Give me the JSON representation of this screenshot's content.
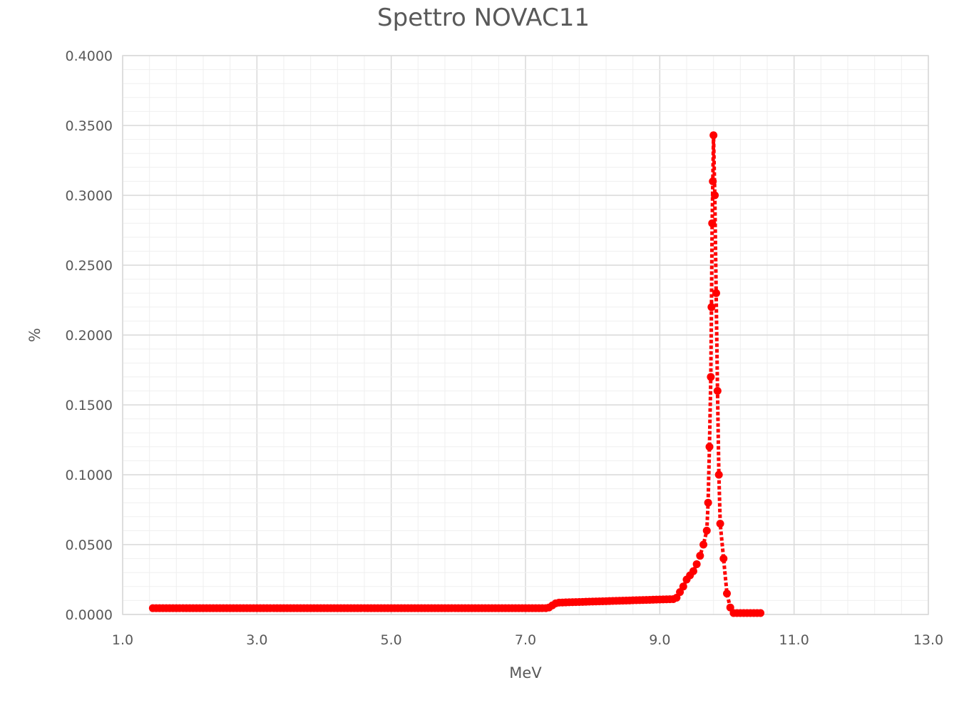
{
  "chart_data": {
    "type": "scatter",
    "title": "Spettro NOVAC11",
    "xlabel": "MeV",
    "ylabel": "%",
    "xlim": [
      1.0,
      13.0
    ],
    "ylim": [
      0.0,
      0.4
    ],
    "x_ticks": [
      "1.0",
      "3.0",
      "5.0",
      "7.0",
      "9.0",
      "11.0",
      "13.0"
    ],
    "y_ticks": [
      "0.0000",
      "0.0500",
      "0.1000",
      "0.1500",
      "0.2000",
      "0.2500",
      "0.3000",
      "0.3500",
      "0.4000"
    ],
    "grid": true,
    "series": [
      {
        "color": "#ff0000",
        "line_style": "dotted",
        "segments": [
          {
            "from": [
              1.45,
              0.0045
            ],
            "to": [
              7.3,
              0.0045
            ],
            "step": 0.05
          },
          {
            "from": [
              7.35,
              0.005
            ],
            "to": [
              7.45,
              0.008
            ],
            "step": 0.05
          },
          {
            "from": [
              7.5,
              0.0085
            ],
            "to": [
              9.2,
              0.011
            ],
            "step": 0.05
          }
        ],
        "points": [
          [
            9.25,
            0.012
          ],
          [
            9.3,
            0.016
          ],
          [
            9.35,
            0.02
          ],
          [
            9.4,
            0.025
          ],
          [
            9.45,
            0.028
          ],
          [
            9.5,
            0.031
          ],
          [
            9.55,
            0.036
          ],
          [
            9.6,
            0.042
          ],
          [
            9.65,
            0.05
          ],
          [
            9.7,
            0.06
          ],
          [
            9.72,
            0.08
          ],
          [
            9.74,
            0.12
          ],
          [
            9.76,
            0.17
          ],
          [
            9.77,
            0.22
          ],
          [
            9.78,
            0.28
          ],
          [
            9.79,
            0.31
          ],
          [
            9.8,
            0.343
          ],
          [
            9.82,
            0.3
          ],
          [
            9.84,
            0.23
          ],
          [
            9.86,
            0.16
          ],
          [
            9.88,
            0.1
          ],
          [
            9.9,
            0.065
          ],
          [
            9.95,
            0.04
          ],
          [
            10.0,
            0.015
          ],
          [
            10.05,
            0.005
          ],
          [
            10.1,
            0.001
          ],
          [
            10.15,
            0.001
          ],
          [
            10.2,
            0.001
          ],
          [
            10.25,
            0.001
          ],
          [
            10.3,
            0.001
          ],
          [
            10.35,
            0.001
          ],
          [
            10.4,
            0.001
          ],
          [
            10.45,
            0.001
          ],
          [
            10.5,
            0.001
          ]
        ]
      }
    ]
  }
}
